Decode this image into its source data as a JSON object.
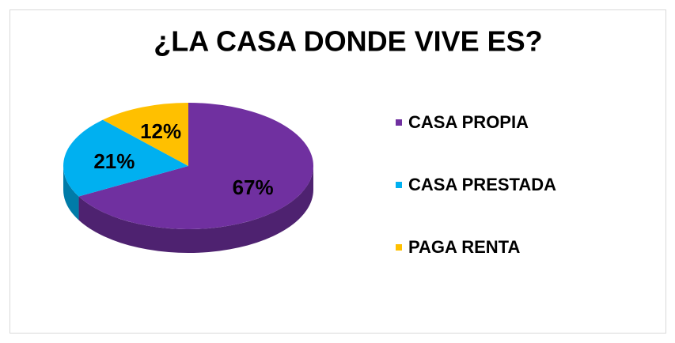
{
  "chart_data": {
    "type": "pie3d",
    "title": "¿LA CASA DONDE VIVE ES?",
    "categories": [
      "CASA PROPIA",
      "CASA PRESTADA",
      "PAGA RENTA"
    ],
    "values": [
      67,
      21,
      12
    ],
    "value_labels": [
      "67%",
      "21%",
      "12%"
    ],
    "colors": [
      "#7030a0",
      "#00b0f0",
      "#ffc000"
    ],
    "legend": "right"
  }
}
